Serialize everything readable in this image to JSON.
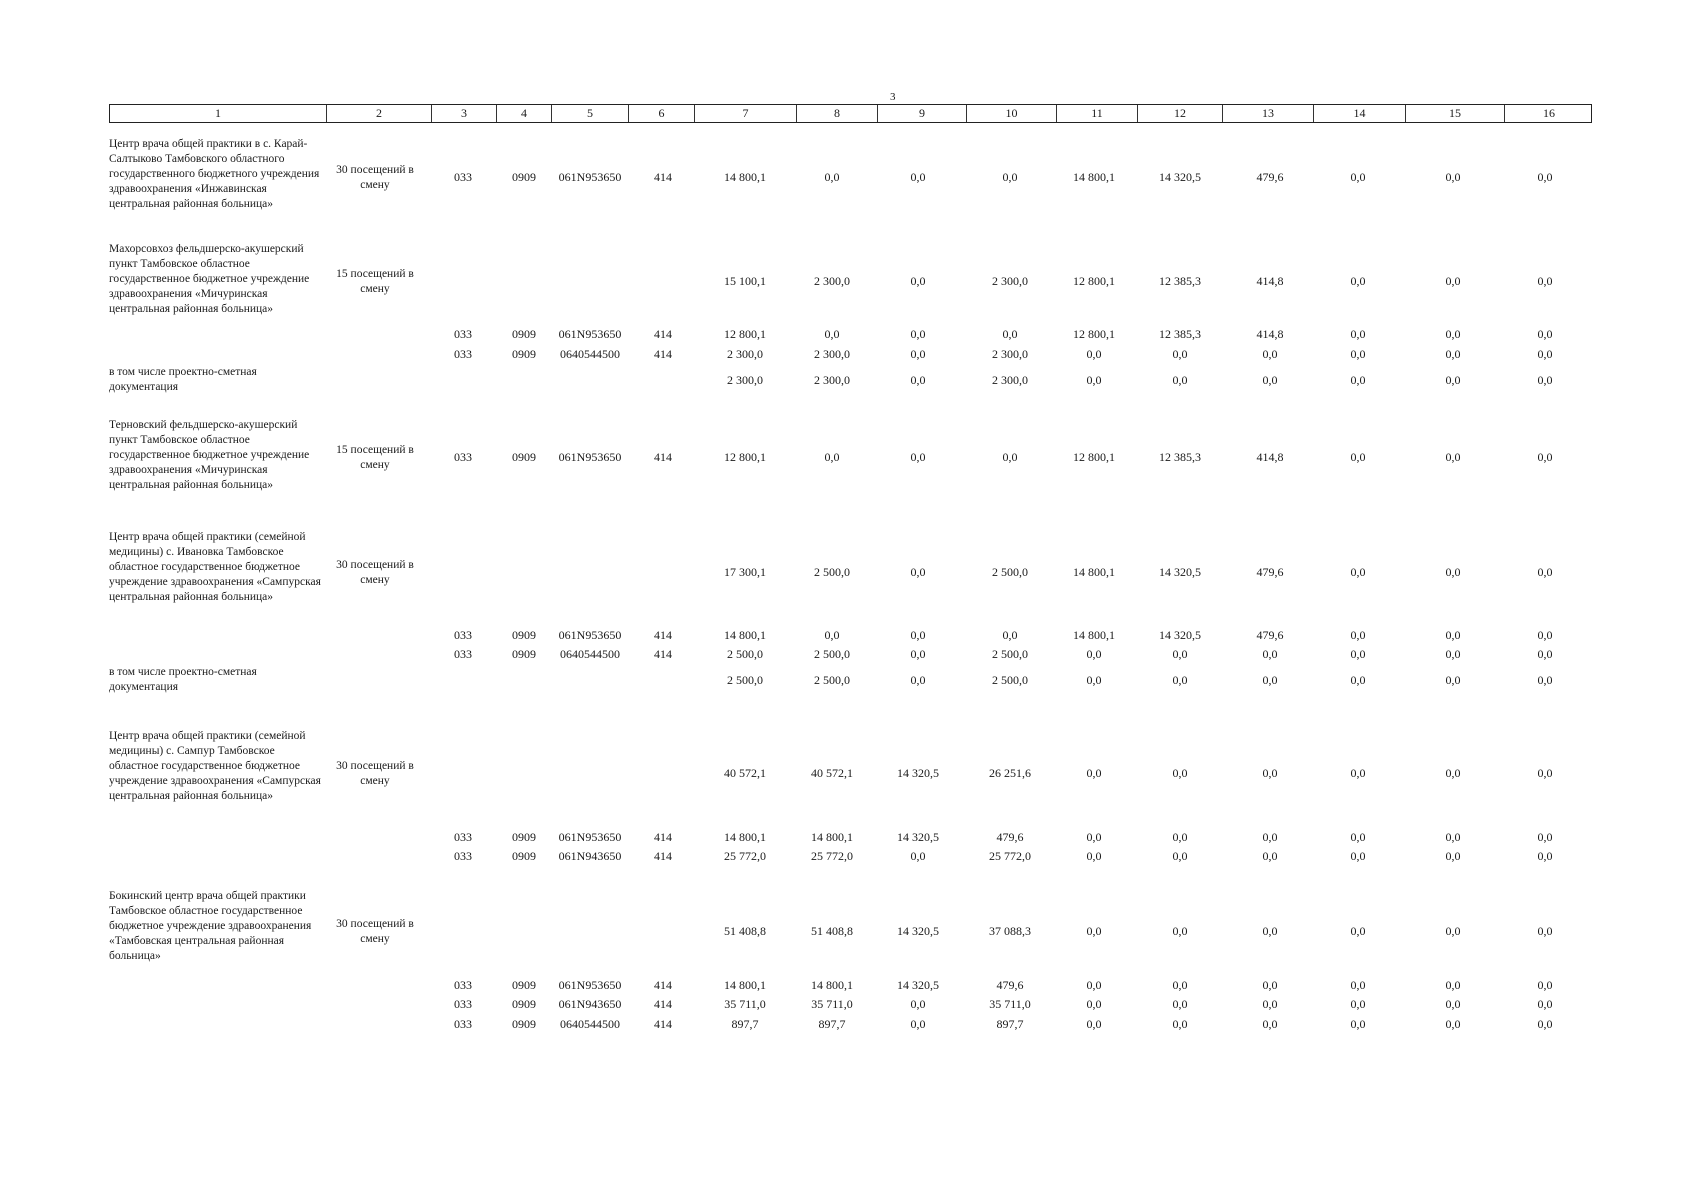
{
  "page_number": "3",
  "columns": [
    "1",
    "2",
    "3",
    "4",
    "5",
    "6",
    "7",
    "8",
    "9",
    "10",
    "11",
    "12",
    "13",
    "14",
    "15",
    "16"
  ],
  "blocks": [
    {
      "name": "Центр врача общей практики в с. Карай-Салтыково Тамбовского областного государственного бюджетного учреждения здравоохранения «Инжавинская центральная районная больница»",
      "capacity": "30 посещений в смену",
      "main": [
        "033",
        "0909",
        "061N953650",
        "414",
        "14 800,1",
        "0,0",
        "0,0",
        "0,0",
        "14 800,1",
        "14 320,5",
        "479,6",
        "0,0",
        "0,0",
        "0,0"
      ],
      "details": []
    },
    {
      "name": "Махорсовхоз фельдшерско-акушерский пункт Тамбовское областное государственное бюджетное учреждение здравоохранения «Мичуринская центральная районная больница»",
      "capacity": "15 посещений в смену",
      "main": [
        "",
        "",
        "",
        "",
        "15 100,1",
        "2 300,0",
        "0,0",
        "2 300,0",
        "12 800,1",
        "12 385,3",
        "414,8",
        "0,0",
        "0,0",
        "0,0"
      ],
      "details": [
        [
          "033",
          "0909",
          "061N953650",
          "414",
          "12 800,1",
          "0,0",
          "0,0",
          "0,0",
          "12 800,1",
          "12 385,3",
          "414,8",
          "0,0",
          "0,0",
          "0,0"
        ],
        [
          "033",
          "0909",
          "0640544500",
          "414",
          "2 300,0",
          "2 300,0",
          "0,0",
          "2 300,0",
          "0,0",
          "0,0",
          "0,0",
          "0,0",
          "0,0",
          "0,0"
        ]
      ],
      "psd": {
        "label": "в том числе проектно-сметная документация",
        "values": [
          "2 300,0",
          "2 300,0",
          "0,0",
          "2 300,0",
          "0,0",
          "0,0",
          "0,0",
          "0,0",
          "0,0",
          "0,0"
        ]
      }
    },
    {
      "name": "Терновский фельдшерско-акушерский пункт Тамбовское областное государственное бюджетное учреждение здравоохранения «Мичуринская центральная районная больница»",
      "capacity": "15 посещений в смену",
      "main": [
        "033",
        "0909",
        "061N953650",
        "414",
        "12 800,1",
        "0,0",
        "0,0",
        "0,0",
        "12 800,1",
        "12 385,3",
        "414,8",
        "0,0",
        "0,0",
        "0,0"
      ],
      "details": []
    },
    {
      "name": "Центр врача общей практики (семейной медицины) с. Ивановка Тамбовское областное государственное бюджетное учреждение здравоохранения «Сампурская центральная районная больница»",
      "capacity": "30 посещений в смену",
      "main": [
        "",
        "",
        "",
        "",
        "17 300,1",
        "2 500,0",
        "0,0",
        "2 500,0",
        "14 800,1",
        "14 320,5",
        "479,6",
        "0,0",
        "0,0",
        "0,0"
      ],
      "details": [
        [
          "033",
          "0909",
          "061N953650",
          "414",
          "14 800,1",
          "0,0",
          "0,0",
          "0,0",
          "14 800,1",
          "14 320,5",
          "479,6",
          "0,0",
          "0,0",
          "0,0"
        ],
        [
          "033",
          "0909",
          "0640544500",
          "414",
          "2 500,0",
          "2 500,0",
          "0,0",
          "2 500,0",
          "0,0",
          "0,0",
          "0,0",
          "0,0",
          "0,0",
          "0,0"
        ]
      ],
      "psd": {
        "label": "в том числе проектно-сметная документация",
        "values": [
          "2 500,0",
          "2 500,0",
          "0,0",
          "2 500,0",
          "0,0",
          "0,0",
          "0,0",
          "0,0",
          "0,0",
          "0,0"
        ]
      }
    },
    {
      "name": "Центр врача общей практики (семейной медицины) с. Сампур Тамбовское областное государственное бюджетное учреждение здравоохранения «Сампурская центральная районная больница»",
      "capacity": "30 посещений в смену",
      "main": [
        "",
        "",
        "",
        "",
        "40 572,1",
        "40 572,1",
        "14 320,5",
        "26 251,6",
        "0,0",
        "0,0",
        "0,0",
        "0,0",
        "0,0",
        "0,0"
      ],
      "details": [
        [
          "033",
          "0909",
          "061N953650",
          "414",
          "14 800,1",
          "14 800,1",
          "14 320,5",
          "479,6",
          "0,0",
          "0,0",
          "0,0",
          "0,0",
          "0,0",
          "0,0"
        ],
        [
          "033",
          "0909",
          "061N943650",
          "414",
          "25 772,0",
          "25 772,0",
          "0,0",
          "25 772,0",
          "0,0",
          "0,0",
          "0,0",
          "0,0",
          "0,0",
          "0,0"
        ]
      ]
    },
    {
      "name": "Бокинский центр врача общей практики Тамбовское областное государственное бюджетное учреждение здравоохранения «Тамбовская центральная районная больница»",
      "capacity": "30 посещений в смену",
      "main": [
        "",
        "",
        "",
        "",
        "51 408,8",
        "51 408,8",
        "14 320,5",
        "37 088,3",
        "0,0",
        "0,0",
        "0,0",
        "0,0",
        "0,0",
        "0,0"
      ],
      "details": [
        [
          "033",
          "0909",
          "061N953650",
          "414",
          "14 800,1",
          "14 800,1",
          "14 320,5",
          "479,6",
          "0,0",
          "0,0",
          "0,0",
          "0,0",
          "0,0",
          "0,0"
        ],
        [
          "033",
          "0909",
          "061N943650",
          "414",
          "35 711,0",
          "35 711,0",
          "0,0",
          "35 711,0",
          "0,0",
          "0,0",
          "0,0",
          "0,0",
          "0,0",
          "0,0"
        ],
        [
          "033",
          "0909",
          "0640544500",
          "414",
          "897,7",
          "897,7",
          "0,0",
          "897,7",
          "0,0",
          "0,0",
          "0,0",
          "0,0",
          "0,0",
          "0,0"
        ]
      ]
    }
  ]
}
